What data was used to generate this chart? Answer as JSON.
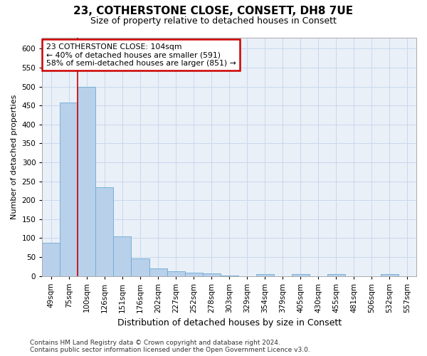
{
  "title1": "23, COTHERSTONE CLOSE, CONSETT, DH8 7UE",
  "title2": "Size of property relative to detached houses in Consett",
  "xlabel": "Distribution of detached houses by size in Consett",
  "ylabel": "Number of detached properties",
  "categories": [
    "49sqm",
    "75sqm",
    "100sqm",
    "126sqm",
    "151sqm",
    "176sqm",
    "202sqm",
    "227sqm",
    "252sqm",
    "278sqm",
    "303sqm",
    "329sqm",
    "354sqm",
    "379sqm",
    "405sqm",
    "430sqm",
    "455sqm",
    "481sqm",
    "506sqm",
    "532sqm",
    "557sqm"
  ],
  "values": [
    88,
    458,
    500,
    235,
    105,
    47,
    20,
    12,
    9,
    6,
    1,
    0,
    5,
    0,
    5,
    0,
    5,
    0,
    0,
    5,
    0
  ],
  "bar_color": "#b8d0ea",
  "bar_edge_color": "#6aaad4",
  "highlight_index": 2,
  "highlight_line_color": "#cc0000",
  "annotation_line1": "23 COTHERSTONE CLOSE: 104sqm",
  "annotation_line2": "← 40% of detached houses are smaller (591)",
  "annotation_line3": "58% of semi-detached houses are larger (851) →",
  "annotation_box_color": "#ffffff",
  "annotation_box_edge": "#cc0000",
  "ylim": [
    0,
    630
  ],
  "yticks": [
    0,
    50,
    100,
    150,
    200,
    250,
    300,
    350,
    400,
    450,
    500,
    550,
    600
  ],
  "footer": "Contains HM Land Registry data © Crown copyright and database right 2024.\nContains public sector information licensed under the Open Government Licence v3.0.",
  "grid_color": "#c8d8ee",
  "bg_color": "#eaf0f8",
  "title1_fontsize": 11,
  "title2_fontsize": 9,
  "xlabel_fontsize": 9,
  "ylabel_fontsize": 8,
  "tick_fontsize": 7.5,
  "footer_fontsize": 6.5
}
